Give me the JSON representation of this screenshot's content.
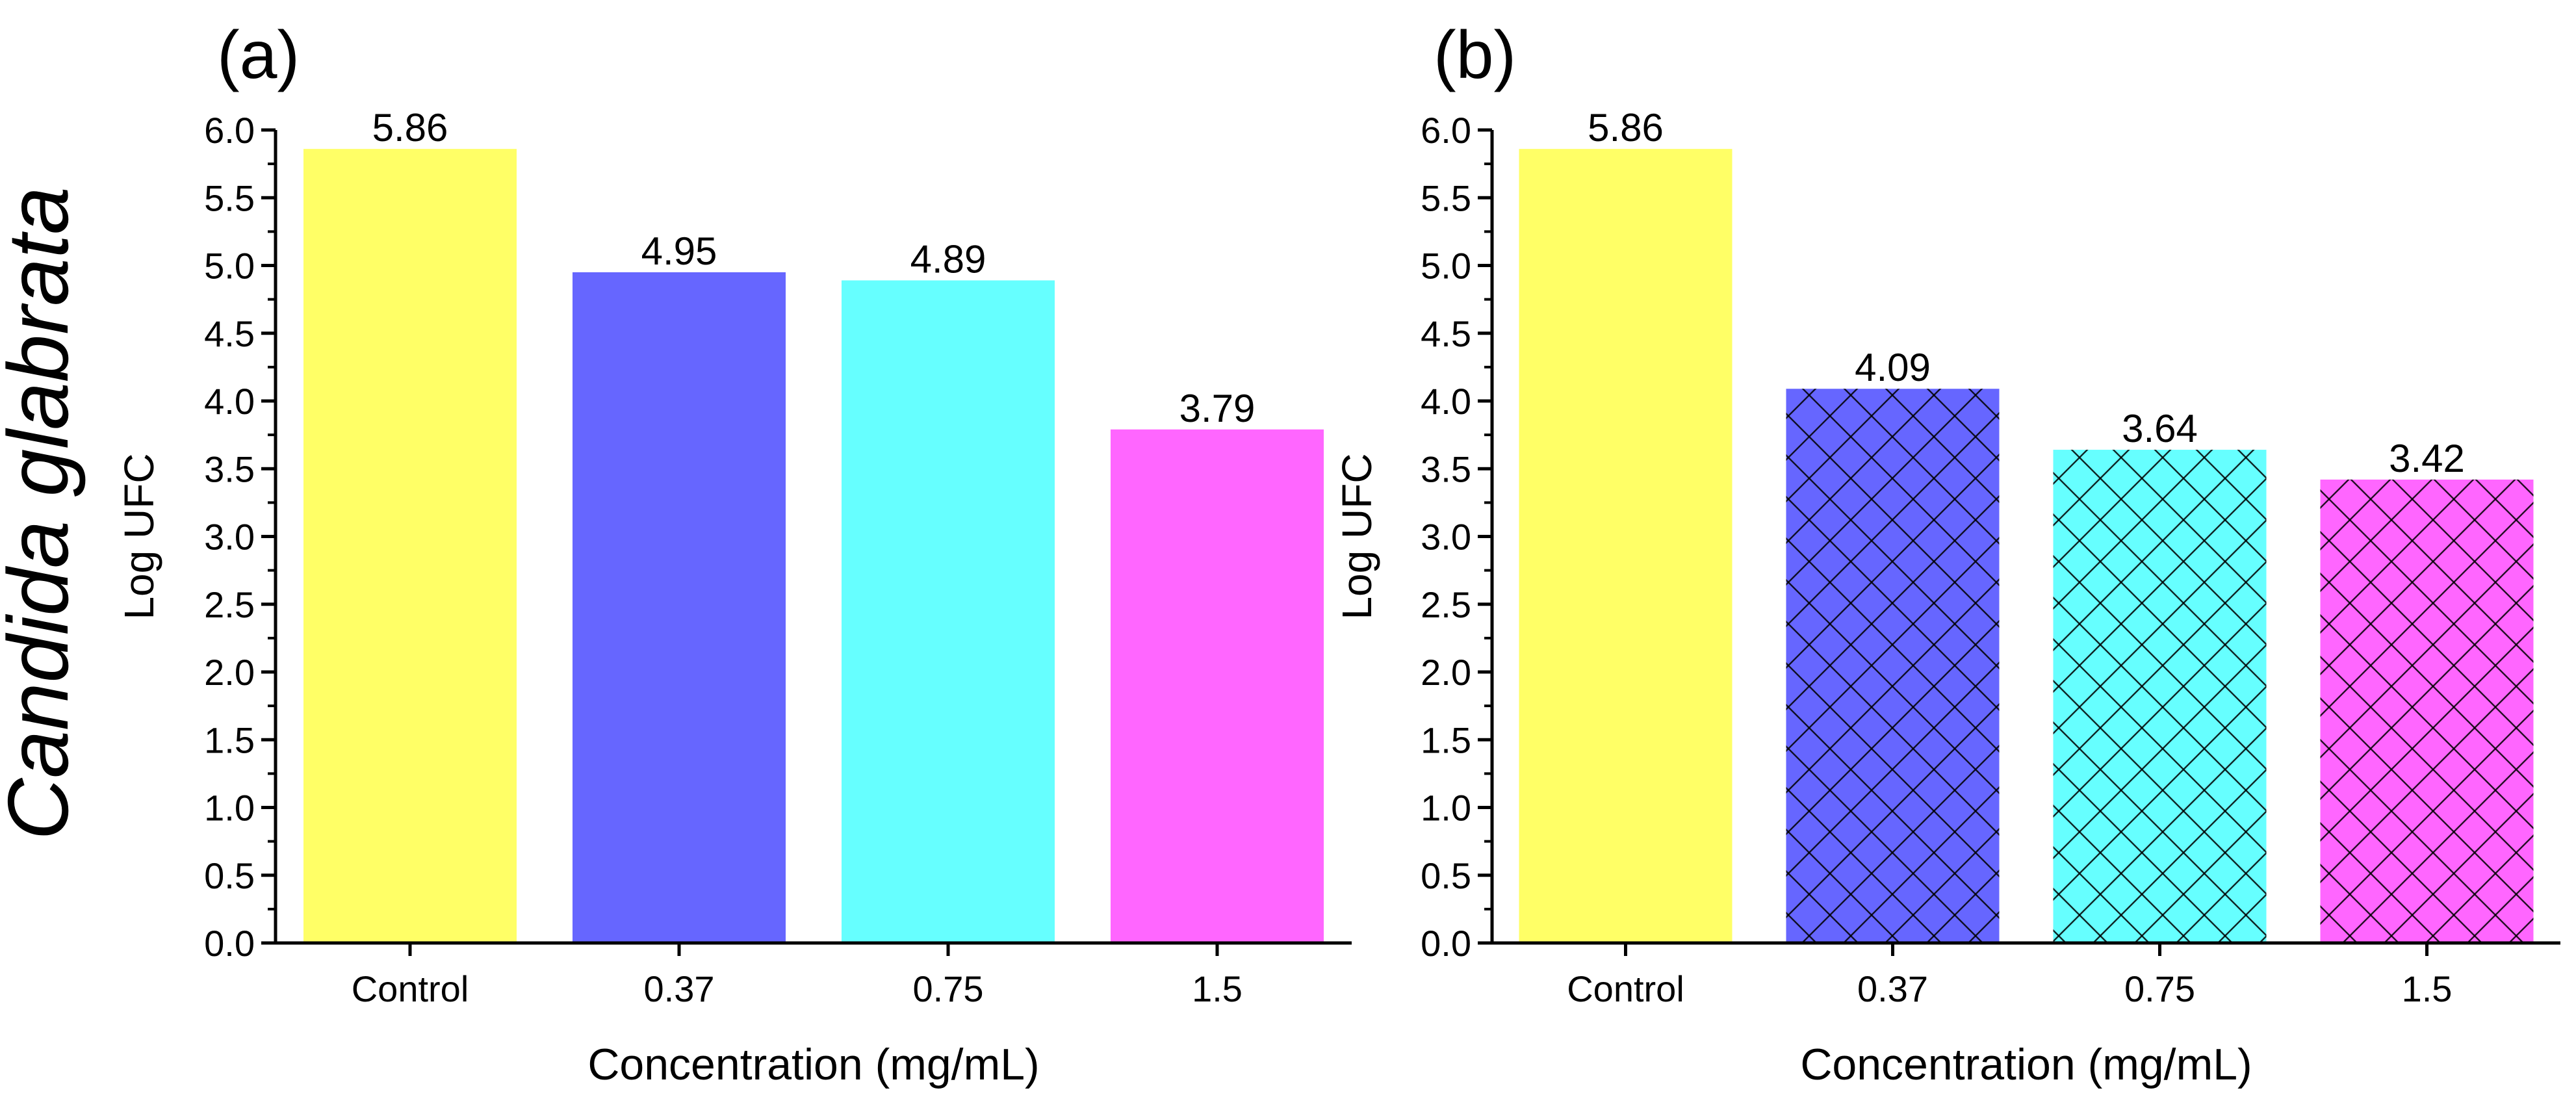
{
  "figure": {
    "row_label": "Candida glabrata"
  },
  "chart_data": [
    {
      "type": "bar",
      "panel_label": "(a)",
      "title": "",
      "xlabel": "Concentration (mg/mL)",
      "ylabel": "Log UFC",
      "categories": [
        "Control",
        "0.37",
        "0.75",
        "1.5"
      ],
      "values": [
        5.86,
        4.95,
        4.89,
        3.79
      ],
      "value_labels": [
        "5.86",
        "4.95",
        "4.89",
        "3.79"
      ],
      "colors": [
        "#ffff66",
        "#6666ff",
        "#66ffff",
        "#ff66ff"
      ],
      "hatched": [
        false,
        false,
        false,
        false
      ],
      "ylim": [
        0,
        6
      ],
      "yticks": [
        0.0,
        0.5,
        1.0,
        1.5,
        2.0,
        2.5,
        3.0,
        3.5,
        4.0,
        4.5,
        5.0,
        5.5,
        6.0
      ],
      "ytick_labels": [
        "0.0",
        "0.5",
        "1.0",
        "1.5",
        "2.0",
        "2.5",
        "3.0",
        "3.5",
        "4.0",
        "4.5",
        "5.0",
        "5.5",
        "6.0"
      ],
      "grid": false,
      "legend": "none"
    },
    {
      "type": "bar",
      "panel_label": "(b)",
      "title": "",
      "xlabel": "Concentration (mg/mL)",
      "ylabel": "Log UFC",
      "categories": [
        "Control",
        "0.37",
        "0.75",
        "1.5"
      ],
      "values": [
        5.86,
        4.09,
        3.64,
        3.42
      ],
      "value_labels": [
        "5.86",
        "4.09",
        "3.64",
        "3.42"
      ],
      "colors": [
        "#ffff66",
        "#6666ff",
        "#66ffff",
        "#ff66ff"
      ],
      "hatched": [
        false,
        true,
        true,
        true
      ],
      "ylim": [
        0,
        6
      ],
      "yticks": [
        0.0,
        0.5,
        1.0,
        1.5,
        2.0,
        2.5,
        3.0,
        3.5,
        4.0,
        4.5,
        5.0,
        5.5,
        6.0
      ],
      "ytick_labels": [
        "0.0",
        "0.5",
        "1.0",
        "1.5",
        "2.0",
        "2.5",
        "3.0",
        "3.5",
        "4.0",
        "4.5",
        "5.0",
        "5.5",
        "6.0"
      ],
      "grid": false,
      "legend": "none"
    }
  ]
}
